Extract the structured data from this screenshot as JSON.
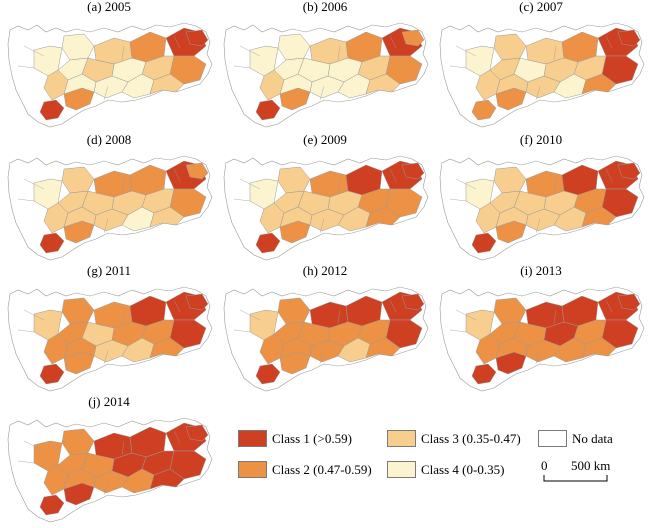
{
  "figure": {
    "panels": [
      {
        "label": "(a) 2005"
      },
      {
        "label": "(b) 2006"
      },
      {
        "label": "(c) 2007"
      },
      {
        "label": "(d) 2008"
      },
      {
        "label": "(e) 2009"
      },
      {
        "label": "(f) 2010"
      },
      {
        "label": "(g) 2011"
      },
      {
        "label": "(h) 2012"
      },
      {
        "label": "(i) 2013"
      },
      {
        "label": "(j) 2014"
      }
    ],
    "colors": {
      "class1": "#cf3f22",
      "class2": "#ed9244",
      "class3": "#f7ce8d",
      "class4": "#fbf4cf",
      "nodata": "#ffffff",
      "border": "#9a9a9a"
    },
    "legend": [
      {
        "key": "class1",
        "label": "Class 1 (>0.59)"
      },
      {
        "key": "class2",
        "label": "Class 2 (0.47-0.59)"
      },
      {
        "key": "class3",
        "label": "Class 3 (0.35-0.47)"
      },
      {
        "key": "class4",
        "label": "Class 4 (0-0.35)"
      },
      {
        "key": "nodata",
        "label": "No data"
      }
    ],
    "scale": {
      "start": "0",
      "end": "500 km"
    }
  }
}
